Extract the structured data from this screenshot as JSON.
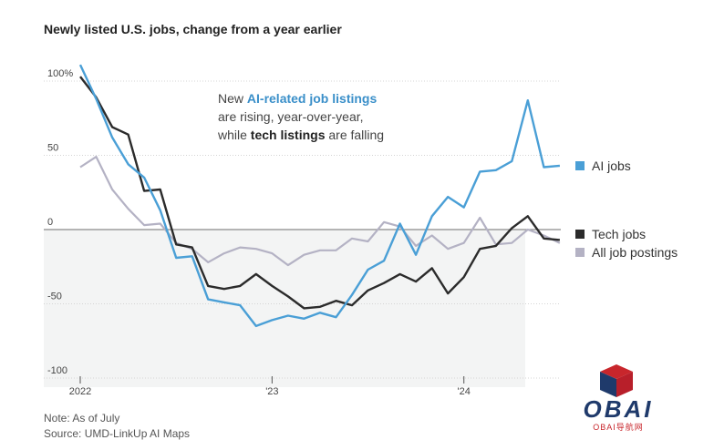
{
  "title": "Newly listed U.S. jobs, change from a year earlier",
  "annotation": {
    "line1_prefix": "New ",
    "line1_highlight": "AI-related job listings",
    "line2": "are rising, year-over-year,",
    "line3_prefix": "while ",
    "line3_highlight": "tech listings",
    "line3_suffix": " are falling"
  },
  "footer": {
    "note": "Note: As of July",
    "source": "Source: UMD-LinkUp AI Maps"
  },
  "logo": {
    "text": "OBAI",
    "sub": "OBAI导航网"
  },
  "colors": {
    "ai": "#4a9fd6",
    "tech": "#2b2b2b",
    "all": "#b4b2c4",
    "shade": "#f3f4f4"
  },
  "chart_data": {
    "type": "line",
    "title": "Newly listed U.S. jobs, change from a year earlier",
    "x_start": "2022-01",
    "x": [
      "2022-01",
      "2022-02",
      "2022-03",
      "2022-04",
      "2022-05",
      "2022-06",
      "2022-07",
      "2022-08",
      "2022-09",
      "2022-10",
      "2022-11",
      "2022-12",
      "2023-01",
      "2023-02",
      "2023-03",
      "2023-04",
      "2023-05",
      "2023-06",
      "2023-07",
      "2023-08",
      "2023-09",
      "2023-10",
      "2023-11",
      "2023-12",
      "2024-01",
      "2024-02",
      "2024-03",
      "2024-04",
      "2024-05",
      "2024-06",
      "2024-07"
    ],
    "x_ticks": [
      {
        "index": 0,
        "label": "2022"
      },
      {
        "index": 12,
        "label": "'23"
      },
      {
        "index": 24,
        "label": "'24"
      }
    ],
    "y_ticks": [
      {
        "value": 100,
        "label": "100%"
      },
      {
        "value": 50,
        "label": "50"
      },
      {
        "value": 0,
        "label": "0"
      },
      {
        "value": -50,
        "label": "-50"
      },
      {
        "value": -100,
        "label": "-100"
      }
    ],
    "ylim": [
      -100,
      110
    ],
    "series": [
      {
        "name": "AI jobs",
        "key": "ai",
        "values": [
          111,
          88,
          62,
          44,
          35,
          13,
          -19,
          -18,
          -47,
          -49,
          -51,
          -65,
          -61,
          -58,
          -60,
          -56,
          -59,
          -44,
          -27,
          -21,
          4,
          -17,
          9,
          22,
          15,
          39,
          40,
          46,
          87,
          42,
          43
        ]
      },
      {
        "name": "Tech jobs",
        "key": "tech",
        "values": [
          103,
          89,
          69,
          64,
          26,
          27,
          -10,
          -12,
          -38,
          -40,
          -38,
          -30,
          -38,
          -45,
          -53,
          -52,
          -48,
          -51,
          -41,
          -36,
          -30,
          -35,
          -26,
          -43,
          -32,
          -13,
          -11,
          1,
          9,
          -6,
          -7
        ]
      },
      {
        "name": "All job postings",
        "key": "all",
        "values": [
          42,
          49,
          27,
          14,
          3,
          4,
          -9,
          -13,
          -22,
          -16,
          -12,
          -13,
          -16,
          -24,
          -17,
          -14,
          -14,
          -6,
          -8,
          5,
          2,
          -11,
          -4,
          -13,
          -9,
          8,
          -10,
          -9,
          0,
          -4,
          -9
        ]
      }
    ],
    "legend": [
      {
        "key": "ai",
        "label": "AI jobs"
      },
      {
        "key": "tech",
        "label": "Tech jobs"
      },
      {
        "key": "all",
        "label": "All job postings"
      }
    ]
  }
}
